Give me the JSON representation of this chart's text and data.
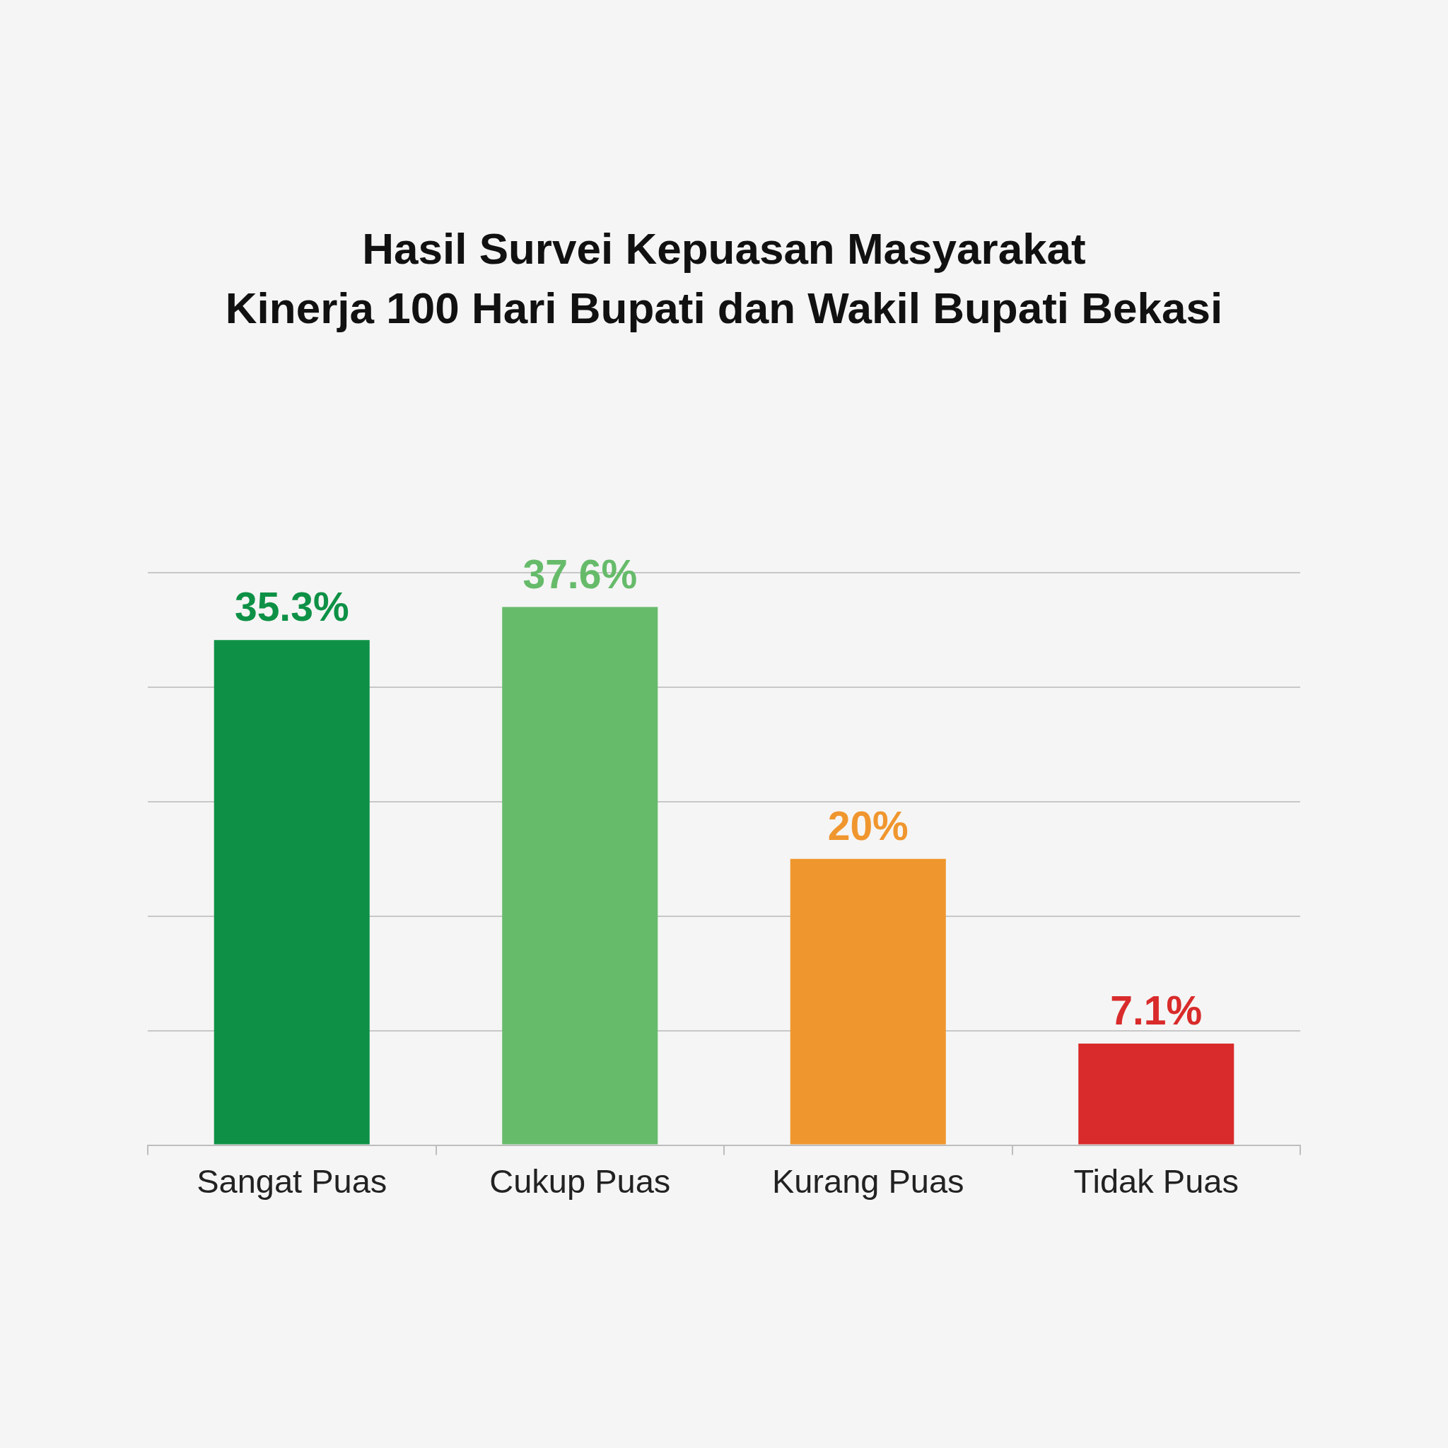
{
  "chart_data": {
    "type": "bar",
    "title": "Hasil Survei Kepuasan Masyarakat\nKinerja 100 Hari Bupati dan Wakil Bupati Bekasi",
    "categories": [
      "Sangat Puas",
      "Cukup Puas",
      "Kurang Puas",
      "Tidak Puas"
    ],
    "values": [
      35.3,
      37.6,
      20,
      7.1
    ],
    "value_labels": [
      "35.3%",
      "37.6%",
      "20%",
      "7.1%"
    ],
    "colors": [
      "#0e9146",
      "#66bb6a",
      "#f0962e",
      "#d92b2b"
    ],
    "ylim": [
      0,
      40
    ],
    "yticks": [
      {
        "value": 0,
        "label": null
      },
      {
        "value": 8,
        "label": null
      },
      {
        "value": 16,
        "label": null
      },
      {
        "value": 24,
        "label": null
      },
      {
        "value": 32,
        "label": null
      },
      {
        "value": 40,
        "label": null
      }
    ],
    "grid": "y",
    "tick_labels": "x",
    "legend": false
  }
}
